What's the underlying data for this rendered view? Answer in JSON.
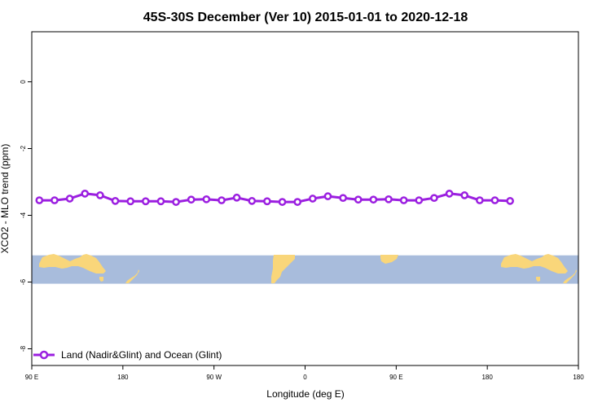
{
  "chart_data": {
    "type": "line",
    "title": "45S-30S December (Ver 10)   2015-01-01 to 2020-12-18",
    "xlabel": "Longitude (deg E)",
    "ylabel": "XCO2 - MLO trend (ppm)",
    "xlim": [
      90,
      630
    ],
    "ylim": [
      -8.5,
      1.5
    ],
    "x_ticks": [
      {
        "value": 90,
        "label": "90 E"
      },
      {
        "value": 180,
        "label": "180"
      },
      {
        "value": 270,
        "label": "90 W"
      },
      {
        "value": 360,
        "label": "0"
      },
      {
        "value": 450,
        "label": "90 E"
      },
      {
        "value": 540,
        "label": "180"
      }
    ],
    "y_ticks": [
      {
        "value": 0,
        "label": "0"
      },
      {
        "value": -2,
        "label": "-2"
      },
      {
        "value": -4,
        "label": "-4"
      },
      {
        "value": -6,
        "label": "-6"
      },
      {
        "value": -8,
        "label": "-8"
      }
    ],
    "map_band": {
      "y_top": -5.2,
      "y_bottom": -6.05,
      "ocean_color": "#a8bcdc",
      "land_color": "#f9d67a"
    },
    "series": [
      {
        "name": "Land (Nadir&Glint) and Ocean (Glint)",
        "color": "#9b1fe0",
        "x": [
          97.5,
          112.5,
          127.5,
          142.5,
          157.5,
          172.5,
          187.5,
          202.5,
          217.5,
          232.5,
          247.5,
          262.5,
          277.5,
          292.5,
          307.5,
          322.5,
          337.5,
          352.5,
          367.5,
          382.5,
          397.5,
          412.5,
          427.5,
          442.5,
          457.5,
          472.5,
          487.5,
          502.5,
          517.5,
          532.5,
          547.5,
          562.5
        ],
        "values": [
          -3.55,
          -3.55,
          -3.5,
          -3.35,
          -3.4,
          -3.57,
          -3.58,
          -3.58,
          -3.58,
          -3.6,
          -3.53,
          -3.52,
          -3.55,
          -3.47,
          -3.57,
          -3.58,
          -3.6,
          -3.6,
          -3.5,
          -3.43,
          -3.48,
          -3.53,
          -3.53,
          -3.52,
          -3.55,
          -3.55,
          -3.48,
          -3.35,
          -3.4,
          -3.55,
          -3.55,
          -3.57
        ]
      }
    ]
  }
}
